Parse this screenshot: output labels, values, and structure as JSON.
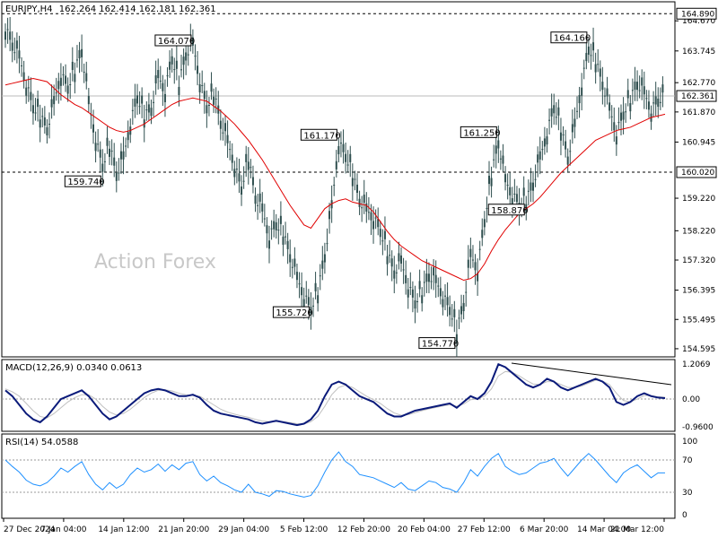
{
  "header": {
    "symbol": "EURJPY,H4",
    "ohlc": "162.264 162.414 162.181 162.361"
  },
  "watermark": "Action Forex",
  "colors": {
    "candle": "#2f4f4f",
    "ma": "#e00000",
    "macd": "#0a1a7a",
    "signal": "#c0c0c0",
    "rsi": "#1e90ff",
    "frame": "#000000"
  },
  "chart_data": [
    {
      "type": "candlestick",
      "title": "EURJPY,H4",
      "y_ticks": [
        "164.670",
        "163.745",
        "162.770",
        "161.870",
        "160.945",
        "159.220",
        "158.220",
        "157.320",
        "156.395",
        "155.495",
        "154.595"
      ],
      "ylim": [
        154.4,
        165.2
      ],
      "x_labels": [
        "27 Dec 2024",
        "7 Jan 04:00",
        "14 Jan 12:00",
        "21 Jan 20:00",
        "29 Jan 04:00",
        "5 Feb 12:00",
        "12 Feb 20:00",
        "20 Feb 04:00",
        "27 Feb 12:00",
        "6 Mar 20:00",
        "14 Mar 04:00",
        "21 Mar 12:00"
      ],
      "levels": [
        {
          "value": 164.89,
          "label": "164.890",
          "style": "dashed"
        },
        {
          "value": 160.02,
          "label": "160.020",
          "style": "dashed"
        }
      ],
      "current_price": {
        "value": 162.361,
        "label": "162.361"
      },
      "annotations": [
        {
          "label": "164.070",
          "value": 164.07,
          "idx": 27
        },
        {
          "label": "159.740",
          "value": 159.74,
          "idx": 14
        },
        {
          "label": "161.170",
          "value": 161.17,
          "idx": 48
        },
        {
          "label": "155.720",
          "value": 155.72,
          "idx": 44
        },
        {
          "label": "154.770",
          "value": 154.77,
          "idx": 65
        },
        {
          "label": "161.250",
          "value": 161.25,
          "idx": 71
        },
        {
          "label": "158.870",
          "value": 158.87,
          "idx": 75
        },
        {
          "label": "164.160",
          "value": 164.16,
          "idx": 84
        }
      ],
      "close": [
        164.5,
        164.0,
        163.6,
        162.7,
        162.0,
        161.8,
        161.4,
        162.2,
        163.0,
        162.6,
        163.2,
        163.8,
        162.2,
        161.0,
        160.2,
        160.9,
        160.0,
        160.5,
        161.5,
        162.3,
        161.8,
        162.0,
        163.0,
        162.5,
        163.5,
        162.8,
        163.7,
        164.0,
        162.8,
        162.0,
        162.5,
        161.6,
        161.0,
        160.2,
        159.5,
        160.5,
        159.3,
        158.9,
        158.0,
        158.4,
        158.2,
        157.5,
        156.8,
        156.2,
        155.8,
        156.4,
        157.5,
        159.0,
        160.9,
        160.5,
        160.0,
        159.2,
        158.9,
        158.6,
        158.2,
        157.6,
        157.0,
        157.3,
        156.5,
        156.0,
        156.4,
        156.9,
        156.7,
        156.2,
        155.8,
        155.2,
        156.0,
        157.5,
        157.0,
        158.5,
        160.0,
        161.0,
        159.8,
        159.3,
        159.0,
        159.2,
        159.7,
        160.5,
        161.2,
        162.0,
        161.4,
        160.5,
        161.5,
        162.7,
        163.8,
        163.5,
        162.8,
        162.0,
        161.2,
        161.8,
        162.3,
        162.8,
        162.5,
        161.9,
        162.2,
        162.36
      ],
      "ma": [
        162.7,
        162.75,
        162.8,
        162.85,
        162.9,
        162.85,
        162.8,
        162.6,
        162.4,
        162.25,
        162.1,
        162.0,
        161.85,
        161.7,
        161.55,
        161.4,
        161.3,
        161.25,
        161.3,
        161.4,
        161.5,
        161.65,
        161.8,
        161.95,
        162.1,
        162.2,
        162.25,
        162.3,
        162.25,
        162.2,
        162.05,
        161.9,
        161.7,
        161.5,
        161.25,
        161.0,
        160.7,
        160.4,
        160.05,
        159.7,
        159.35,
        159.0,
        158.7,
        158.4,
        158.3,
        158.6,
        158.9,
        159.05,
        159.15,
        159.2,
        159.1,
        159.05,
        159.0,
        158.8,
        158.5,
        158.2,
        157.95,
        157.75,
        157.6,
        157.45,
        157.3,
        157.2,
        157.1,
        157.0,
        156.9,
        156.8,
        156.7,
        156.75,
        156.9,
        157.2,
        157.6,
        157.95,
        158.25,
        158.5,
        158.75,
        158.9,
        159.05,
        159.25,
        159.5,
        159.75,
        160.0,
        160.2,
        160.4,
        160.6,
        160.8,
        161.0,
        161.1,
        161.2,
        161.3,
        161.35,
        161.4,
        161.5,
        161.6,
        161.7,
        161.75,
        161.8
      ]
    },
    {
      "type": "line",
      "title": "MACD(12,26,9) 0.0340 0.0613",
      "y_ticks": [
        "1.2069",
        "0.00",
        "-0.9600"
      ],
      "ylim": [
        -1.05,
        1.3
      ],
      "series": [
        {
          "values": [
            0.3,
            0.1,
            -0.2,
            -0.5,
            -0.7,
            -0.8,
            -0.6,
            -0.3,
            0.0,
            0.1,
            0.2,
            0.3,
            0.1,
            -0.2,
            -0.5,
            -0.7,
            -0.6,
            -0.4,
            -0.2,
            0.0,
            0.2,
            0.3,
            0.35,
            0.3,
            0.2,
            0.1,
            0.1,
            0.15,
            0.05,
            -0.2,
            -0.4,
            -0.5,
            -0.55,
            -0.6,
            -0.65,
            -0.7,
            -0.8,
            -0.85,
            -0.8,
            -0.75,
            -0.8,
            -0.85,
            -0.9,
            -0.85,
            -0.7,
            -0.4,
            0.1,
            0.5,
            0.6,
            0.5,
            0.3,
            0.1,
            0.0,
            -0.1,
            -0.3,
            -0.5,
            -0.6,
            -0.6,
            -0.5,
            -0.4,
            -0.35,
            -0.3,
            -0.25,
            -0.2,
            -0.15,
            -0.3,
            -0.1,
            0.1,
            0.0,
            0.2,
            0.6,
            1.2,
            1.1,
            0.9,
            0.7,
            0.5,
            0.4,
            0.5,
            0.7,
            0.6,
            0.4,
            0.3,
            0.4,
            0.5,
            0.6,
            0.7,
            0.6,
            0.4,
            -0.1,
            -0.2,
            -0.1,
            0.1,
            0.2,
            0.1,
            0.05,
            0.034
          ]
        },
        {
          "values": [
            0.35,
            0.25,
            0.1,
            -0.15,
            -0.4,
            -0.6,
            -0.65,
            -0.5,
            -0.3,
            -0.1,
            0.05,
            0.15,
            0.15,
            0.0,
            -0.25,
            -0.45,
            -0.55,
            -0.5,
            -0.35,
            -0.15,
            0.05,
            0.2,
            0.3,
            0.32,
            0.28,
            0.2,
            0.15,
            0.12,
            0.1,
            -0.05,
            -0.2,
            -0.35,
            -0.45,
            -0.52,
            -0.58,
            -0.63,
            -0.7,
            -0.76,
            -0.78,
            -0.77,
            -0.78,
            -0.81,
            -0.85,
            -0.86,
            -0.78,
            -0.6,
            -0.25,
            0.15,
            0.4,
            0.48,
            0.4,
            0.25,
            0.1,
            -0.02,
            -0.15,
            -0.33,
            -0.48,
            -0.56,
            -0.54,
            -0.47,
            -0.4,
            -0.34,
            -0.29,
            -0.24,
            -0.2,
            -0.25,
            -0.17,
            -0.02,
            0.0,
            0.1,
            0.35,
            0.8,
            0.95,
            0.92,
            0.8,
            0.65,
            0.52,
            0.5,
            0.6,
            0.6,
            0.5,
            0.4,
            0.4,
            0.45,
            0.55,
            0.65,
            0.62,
            0.5,
            0.2,
            -0.05,
            -0.1,
            0.0,
            0.12,
            0.12,
            0.08,
            0.061
          ]
        }
      ]
    },
    {
      "type": "line",
      "title": "RSI(14) 54.0588",
      "y_ticks": [
        "100",
        "70",
        "30",
        "0"
      ],
      "ylim": [
        0,
        100
      ],
      "levels": [
        70,
        30
      ],
      "series": [
        {
          "values": [
            70,
            62,
            55,
            45,
            40,
            38,
            42,
            50,
            60,
            55,
            62,
            68,
            52,
            40,
            33,
            42,
            35,
            40,
            52,
            60,
            55,
            58,
            65,
            56,
            64,
            58,
            66,
            68,
            52,
            44,
            50,
            42,
            38,
            33,
            30,
            40,
            30,
            28,
            25,
            32,
            31,
            28,
            26,
            24,
            26,
            38,
            55,
            70,
            80,
            68,
            62,
            52,
            50,
            48,
            44,
            40,
            36,
            42,
            34,
            32,
            38,
            44,
            42,
            36,
            34,
            30,
            42,
            58,
            50,
            62,
            72,
            78,
            62,
            56,
            52,
            54,
            60,
            66,
            68,
            72,
            60,
            50,
            60,
            70,
            78,
            70,
            60,
            50,
            42,
            54,
            60,
            64,
            56,
            48,
            54,
            54
          ]
        }
      ]
    }
  ]
}
